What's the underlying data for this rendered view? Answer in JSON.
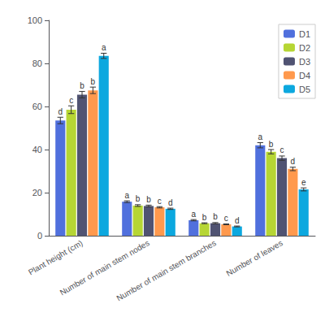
{
  "chart_data": {
    "type": "bar",
    "categories": [
      "Plant height (cm)",
      "Number of main stem nodes",
      "Number of main stem branches",
      "Number of leaves"
    ],
    "series": [
      {
        "name": "D1",
        "values": [
          53.5,
          15.8,
          7.2,
          42.0
        ],
        "errors": [
          1.5,
          0.4,
          0.3,
          1.2
        ],
        "letters": [
          "d",
          "a",
          "a",
          "a"
        ]
      },
      {
        "name": "D2",
        "values": [
          58.5,
          14.0,
          5.8,
          39.0
        ],
        "errors": [
          1.8,
          0.4,
          0.2,
          1.0
        ],
        "letters": [
          "c",
          "b",
          "b",
          "b"
        ]
      },
      {
        "name": "D3",
        "values": [
          65.5,
          13.8,
          5.8,
          36.0
        ],
        "errors": [
          1.5,
          0.4,
          0.3,
          1.0
        ],
        "letters": [
          "b",
          "b",
          "b",
          "c"
        ]
      },
      {
        "name": "D4",
        "values": [
          67.5,
          13.2,
          5.3,
          31.0
        ],
        "errors": [
          1.5,
          0.3,
          0.2,
          0.8
        ],
        "letters": [
          "b",
          "c",
          "c",
          "d"
        ]
      },
      {
        "name": "D5",
        "values": [
          83.5,
          12.5,
          4.3,
          21.5
        ],
        "errors": [
          1.2,
          0.3,
          0.2,
          0.7
        ],
        "letters": [
          "a",
          "d",
          "d",
          "e"
        ]
      }
    ],
    "ylim": [
      0,
      100
    ],
    "yticks": [
      0,
      20,
      40,
      60,
      80,
      100
    ],
    "grid": false,
    "legend": "upper right"
  }
}
